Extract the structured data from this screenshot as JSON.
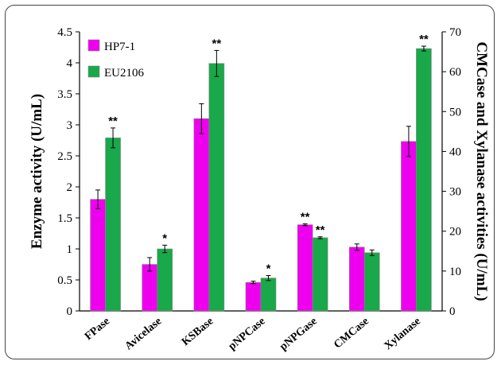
{
  "chart_data": {
    "type": "bar",
    "categories": [
      "FPase",
      "Avicelase",
      "KSBase",
      "pNPCase",
      "pNPGase",
      "CMCase",
      "Xylanase"
    ],
    "series": [
      {
        "name": "HP7-1",
        "color": "#ee00ee",
        "axis": [
          "left",
          "left",
          "left",
          "left",
          "left",
          "right",
          "right"
        ],
        "values": [
          1.8,
          0.75,
          3.1,
          0.46,
          1.39,
          16.0,
          42.5
        ],
        "errors": [
          0.15,
          0.11,
          0.24,
          0.02,
          0.015,
          0.8,
          3.8
        ]
      },
      {
        "name": "EU2106",
        "color": "#19a84a",
        "axis": [
          "left",
          "left",
          "left",
          "left",
          "left",
          "right",
          "right"
        ],
        "values": [
          2.79,
          1.0,
          3.99,
          0.53,
          1.18,
          14.6,
          65.8
        ],
        "errors": [
          0.16,
          0.06,
          0.21,
          0.04,
          0.015,
          0.7,
          0.6
        ],
        "significance": [
          "**",
          "*",
          "**",
          "*",
          "**",
          "",
          "**"
        ]
      }
    ],
    "significance_hp": [
      "",
      "",
      "",
      "",
      "**",
      "",
      ""
    ],
    "ylabel": "Enzyme activity (U/mL)",
    "y2label": "CMCase and Xylanase activities (U/mL)",
    "ylim": [
      0,
      4.5
    ],
    "y2lim": [
      0,
      70
    ],
    "yticks": [
      "0",
      "0.5",
      "1",
      "1.5",
      "2",
      "2.5",
      "3",
      "3.5",
      "4",
      "4.5"
    ],
    "y2ticks": [
      "0",
      "10",
      "20",
      "30",
      "40",
      "50",
      "60",
      "70"
    ],
    "legend_position": "top-left"
  }
}
